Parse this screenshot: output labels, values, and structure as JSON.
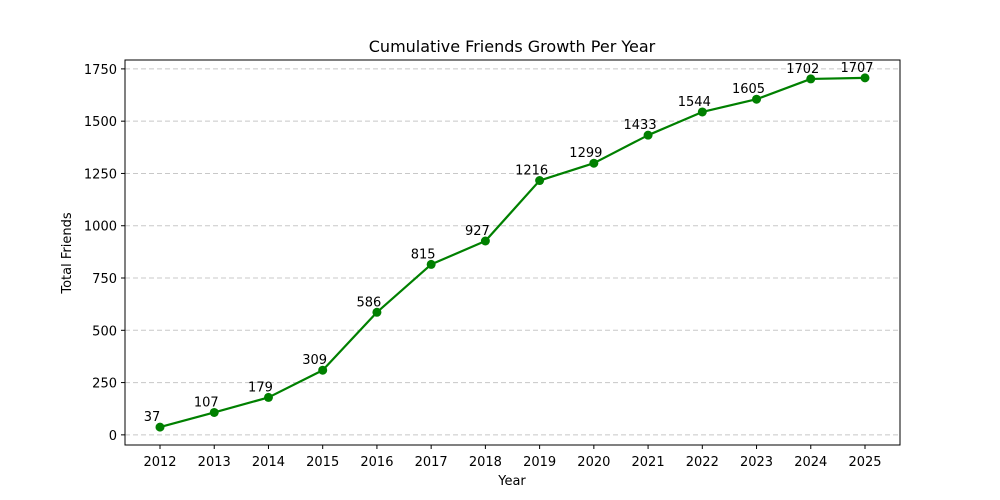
{
  "chart_data": {
    "type": "line",
    "title": "Cumulative Friends Growth Per Year",
    "xlabel": "Year",
    "ylabel": "Total Friends",
    "x": [
      "2012",
      "2013",
      "2014",
      "2015",
      "2016",
      "2017",
      "2018",
      "2019",
      "2020",
      "2021",
      "2022",
      "2023",
      "2024",
      "2025"
    ],
    "series": [
      {
        "values": [
          37,
          107,
          179,
          309,
          586,
          815,
          927,
          1216,
          1299,
          1433,
          1544,
          1605,
          1702,
          1707
        ],
        "color": "#008000",
        "marker": "circle"
      }
    ],
    "data_labels": [
      "37",
      "107",
      "179",
      "309",
      "586",
      "815",
      "927",
      "1216",
      "1299",
      "1433",
      "1544",
      "1605",
      "1702",
      "1707"
    ],
    "yticks": [
      0,
      250,
      500,
      750,
      1000,
      1250,
      1500,
      1750
    ],
    "ytick_labels": [
      "0",
      "250",
      "500",
      "750",
      "1000",
      "1250",
      "1500",
      "1750"
    ],
    "ylim": [
      -48.5,
      1792.5
    ],
    "grid": "y-dashed",
    "legend": "none"
  }
}
